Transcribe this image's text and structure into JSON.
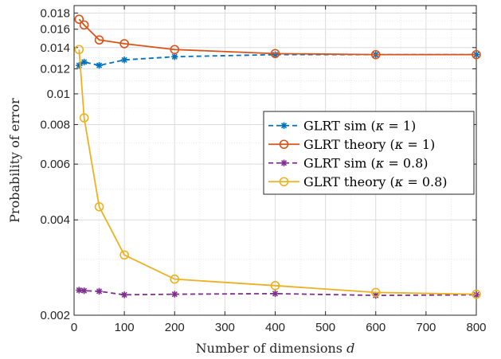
{
  "chart_data": {
    "type": "line",
    "xlabel": "Number of dimensions d",
    "ylabel": "Probability of error",
    "xlim": [
      0,
      800
    ],
    "ylim": [
      0.002,
      0.019
    ],
    "yscale": "log",
    "grid": true,
    "legend_position": "center-right",
    "x_ticks": [
      "0",
      "100",
      "200",
      "300",
      "400",
      "500",
      "600",
      "700",
      "800"
    ],
    "y_ticks": [
      "0.002",
      "0.004",
      "0.006",
      "0.008",
      "0.01",
      "0.012",
      "0.014",
      "0.016",
      "0.018"
    ],
    "series": [
      {
        "name": "GLRT sim (κ = 1)",
        "color": "#0072BD",
        "line": "dashed",
        "marker": "asterisk",
        "x": [
          10,
          20,
          50,
          100,
          200,
          400,
          600,
          800
        ],
        "y": [
          0.0123,
          0.0126,
          0.0123,
          0.0128,
          0.0131,
          0.0133,
          0.0133,
          0.0133
        ]
      },
      {
        "name": "GLRT theory (κ = 1)",
        "color": "#D95319",
        "line": "solid",
        "marker": "circle",
        "x": [
          10,
          20,
          50,
          100,
          200,
          400,
          600,
          800
        ],
        "y": [
          0.0172,
          0.0165,
          0.0148,
          0.0144,
          0.0138,
          0.0134,
          0.0133,
          0.0133
        ]
      },
      {
        "name": "GLRT sim (κ = 0.8)",
        "color": "#7E2F8E",
        "line": "dashed",
        "marker": "asterisk",
        "x": [
          10,
          20,
          50,
          100,
          200,
          400,
          600,
          800
        ],
        "y": [
          0.0024,
          0.00239,
          0.00238,
          0.00232,
          0.00233,
          0.00234,
          0.00231,
          0.00232
        ]
      },
      {
        "name": "GLRT theory (κ = 0.8)",
        "color": "#EDB120",
        "line": "solid",
        "marker": "circle",
        "x": [
          10,
          20,
          50,
          100,
          200,
          400,
          600,
          800
        ],
        "y": [
          0.0138,
          0.0084,
          0.0044,
          0.0031,
          0.0026,
          0.00248,
          0.00236,
          0.00233
        ]
      }
    ]
  }
}
